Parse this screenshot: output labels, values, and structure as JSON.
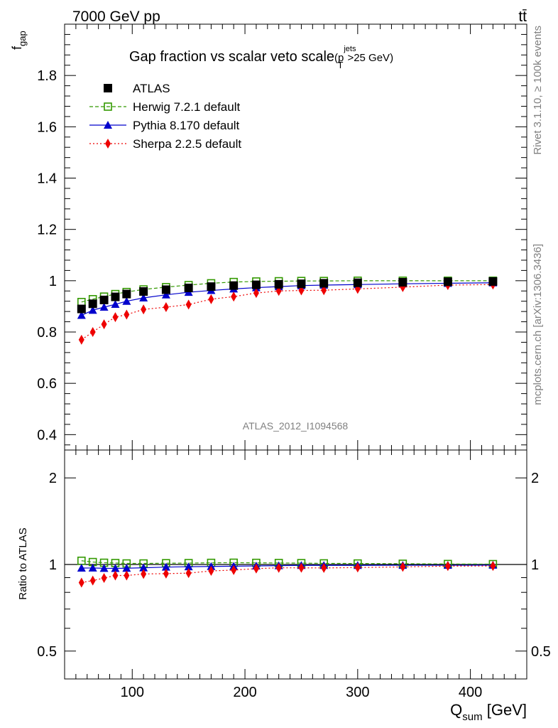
{
  "header": {
    "energy_label": "7000 GeV pp",
    "process_label": "tt̄",
    "analysis_id": "ATLAS_2012_I1094568",
    "side_label_top": "Rivet 3.1.10, ≥ 100k events",
    "side_label_bottom": "mcplots.cern.ch [arXiv:1306.3436]"
  },
  "chart_data": {
    "type": "scatter",
    "title": {
      "main": "Gap fraction vs scalar veto scale",
      "open": "(p",
      "sub": "T",
      "sup": "jets",
      "close": ">25 GeV)"
    },
    "xlabel": {
      "main": "Q",
      "sub": "sum",
      "unit": " [GeV]"
    },
    "ylabel": {
      "main": "f",
      "sub": "gap"
    },
    "ratio_ylabel": "Ratio to ATLAS",
    "xlim": [
      40,
      450
    ],
    "ylim": [
      0.34,
      2.0
    ],
    "ratio_ylim": [
      0.4,
      2.5
    ],
    "ratio_log": true,
    "x_ticks": [
      100,
      200,
      300,
      400
    ],
    "y_ticks": [
      0.4,
      0.6,
      0.8,
      1.0,
      1.2,
      1.4,
      1.6,
      1.8
    ],
    "y_tick_labels": [
      "0.4",
      "0.6",
      "0.8",
      "1",
      "1.2",
      "1.4",
      "1.6",
      "1.8"
    ],
    "ratio_ticks": [
      0.5,
      1,
      2
    ],
    "ratio_tick_labels": [
      "0.5",
      "1",
      "2"
    ],
    "legend_position": "top-left",
    "x": [
      55,
      65,
      75,
      85,
      95,
      110,
      130,
      150,
      170,
      190,
      210,
      230,
      250,
      270,
      300,
      340,
      380,
      420
    ],
    "series": [
      {
        "name": "ATLAS",
        "marker": "square",
        "color": "#000000",
        "values": [
          0.89,
          0.91,
          0.925,
          0.937,
          0.948,
          0.958,
          0.965,
          0.972,
          0.977,
          0.981,
          0.984,
          0.986,
          0.988,
          0.99,
          0.992,
          0.994,
          0.996,
          0.997
        ]
      },
      {
        "name": "Herwig 7.2.1 default",
        "marker": "open-square",
        "line": "dashed",
        "color": "#339900",
        "values": [
          0.917,
          0.928,
          0.938,
          0.948,
          0.956,
          0.966,
          0.975,
          0.983,
          0.99,
          0.995,
          0.997,
          0.998,
          0.999,
          0.999,
          1.0,
          1.0,
          1.0,
          1.0
        ]
      },
      {
        "name": "Pythia 8.170 default",
        "marker": "triangle",
        "line": "solid",
        "color": "#0000cc",
        "values": [
          0.865,
          0.885,
          0.897,
          0.908,
          0.92,
          0.933,
          0.945,
          0.955,
          0.962,
          0.968,
          0.973,
          0.977,
          0.981,
          0.983,
          0.985,
          0.988,
          0.99,
          0.992
        ]
      },
      {
        "name": "Sherpa 2.2.5 default",
        "marker": "diamond",
        "line": "dotted",
        "color": "#ee0000",
        "values": [
          0.77,
          0.8,
          0.83,
          0.858,
          0.868,
          0.888,
          0.897,
          0.907,
          0.928,
          0.938,
          0.952,
          0.96,
          0.962,
          0.963,
          0.968,
          0.975,
          0.983,
          0.985
        ]
      }
    ]
  }
}
